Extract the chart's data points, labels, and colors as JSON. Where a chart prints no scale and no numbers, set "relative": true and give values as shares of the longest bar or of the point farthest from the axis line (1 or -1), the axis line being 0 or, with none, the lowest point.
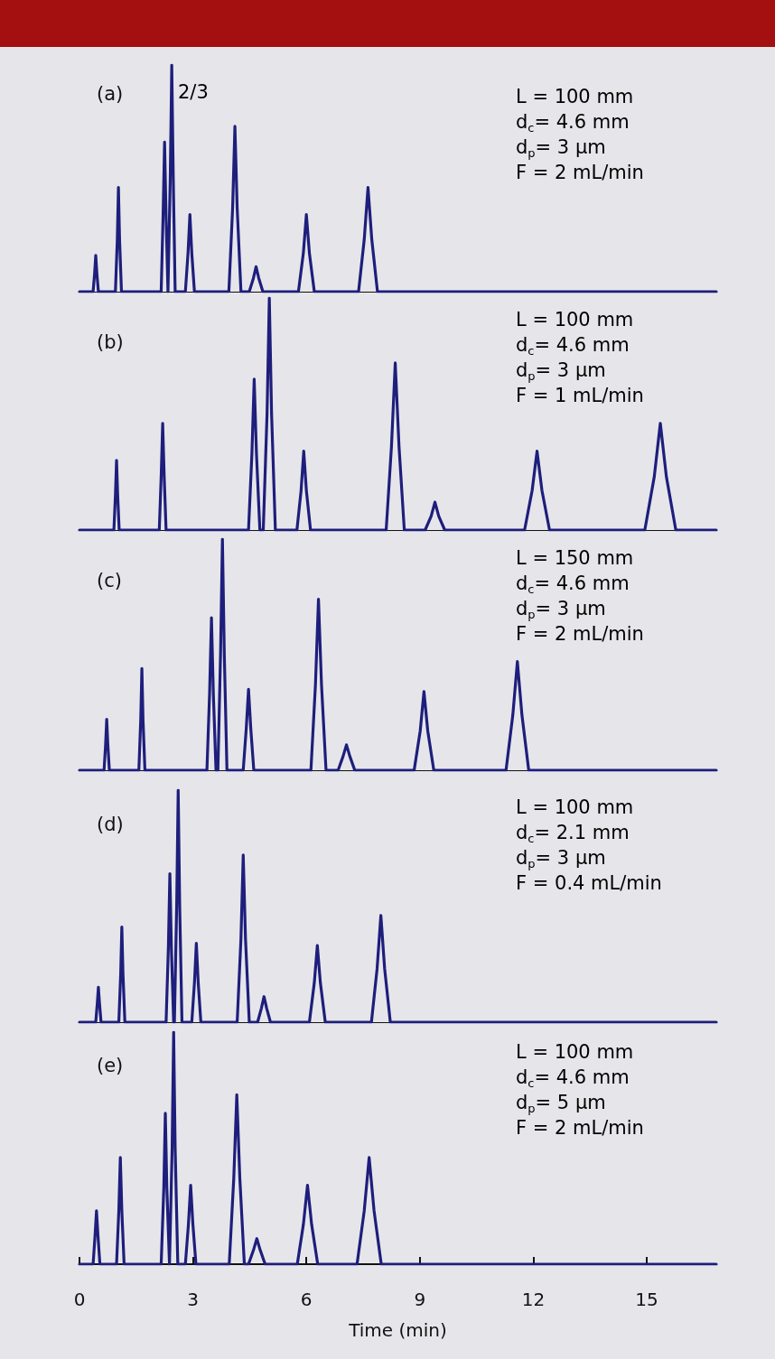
{
  "chart_data": [
    {
      "type": "line",
      "title": "(a)",
      "relative": true,
      "marker": "none",
      "tick_labels": false,
      "xlim": [
        0,
        16.84
      ],
      "annotations": [
        "L = 100 mm",
        "d$_{c}$= 4.6 mm",
        "d$_{p}$= 3 µm",
        "F = 2 mL/min",
        "2/3"
      ],
      "x": [
        0,
        0.36,
        0.4,
        0.43,
        0.46,
        0.5,
        0.95,
        1.0,
        1.03,
        1.06,
        1.11,
        2.16,
        2.21,
        2.25,
        2.29,
        2.34,
        2.35,
        2.4,
        2.44,
        2.48,
        2.53,
        2.8,
        2.87,
        2.92,
        2.97,
        3.04,
        3.95,
        4.05,
        4.11,
        4.17,
        4.27,
        4.49,
        4.6,
        4.67,
        4.74,
        4.85,
        5.79,
        5.92,
        6.0,
        6.08,
        6.21,
        7.38,
        7.53,
        7.63,
        7.73,
        7.88,
        16.84
      ],
      "series": [
        {
          "color": "#1e1e7c",
          "values": [
            0,
            0,
            0.08,
            0.16,
            0.08,
            0,
            0,
            0.23,
            0.46,
            0.23,
            0,
            0,
            0.33,
            0.66,
            0.33,
            0,
            0,
            0.5,
            1,
            0.5,
            0,
            0,
            0.17,
            0.34,
            0.17,
            0,
            0,
            0.37,
            0.73,
            0.37,
            0,
            0,
            0.06,
            0.11,
            0.06,
            0,
            0,
            0.17,
            0.34,
            0.17,
            0,
            0,
            0.23,
            0.46,
            0.23,
            0,
            0
          ]
        }
      ]
    },
    {
      "type": "line",
      "title": "(b)",
      "relative": true,
      "marker": "none",
      "tick_labels": false,
      "xlim": [
        0,
        16.84
      ],
      "annotations": [
        "L = 100 mm",
        "d$_{c}$= 4.6 mm",
        "d$_{p}$= 3 µm",
        "F = 1 mL/min"
      ],
      "x": [
        0,
        0.91,
        0.95,
        0.98,
        1.01,
        1.05,
        2.11,
        2.16,
        2.2,
        2.24,
        2.29,
        4.47,
        4.56,
        4.62,
        4.68,
        4.77,
        4.86,
        4.96,
        5.02,
        5.08,
        5.18,
        5.75,
        5.86,
        5.93,
        6.0,
        6.11,
        8.11,
        8.25,
        8.35,
        8.45,
        8.59,
        9.14,
        9.3,
        9.4,
        9.5,
        9.66,
        11.77,
        11.97,
        12.1,
        12.23,
        12.43,
        14.95,
        15.2,
        15.36,
        15.52,
        15.77,
        16.84
      ],
      "series": [
        {
          "color": "#1e1e7c",
          "values": [
            0,
            0,
            0.15,
            0.3,
            0.15,
            0,
            0,
            0.23,
            0.46,
            0.23,
            0,
            0,
            0.33,
            0.65,
            0.33,
            0,
            0,
            0.5,
            1,
            0.5,
            0,
            0,
            0.17,
            0.34,
            0.17,
            0,
            0,
            0.36,
            0.72,
            0.36,
            0,
            0,
            0.06,
            0.12,
            0.06,
            0,
            0,
            0.17,
            0.34,
            0.17,
            0,
            0,
            0.23,
            0.46,
            0.23,
            0,
            0
          ]
        }
      ]
    },
    {
      "type": "line",
      "title": "(c)",
      "relative": true,
      "marker": "none",
      "tick_labels": false,
      "xlim": [
        0,
        16.84
      ],
      "annotations": [
        "L = 150 mm",
        "d$_{c}$= 4.6 mm",
        "d$_{p}$= 3 µm",
        "F = 2 mL/min"
      ],
      "x": [
        0,
        0.65,
        0.69,
        0.72,
        0.75,
        0.79,
        1.57,
        1.62,
        1.65,
        1.68,
        1.73,
        3.37,
        3.44,
        3.49,
        3.54,
        3.61,
        3.66,
        3.73,
        3.78,
        3.83,
        3.9,
        4.33,
        4.41,
        4.47,
        4.53,
        4.61,
        6.12,
        6.24,
        6.32,
        6.4,
        6.52,
        6.84,
        6.97,
        7.06,
        7.15,
        7.28,
        8.85,
        9.01,
        9.11,
        9.21,
        9.37,
        11.28,
        11.46,
        11.58,
        11.7,
        11.88,
        16.84
      ],
      "series": [
        {
          "color": "#1e1e7c",
          "values": [
            0,
            0,
            0.11,
            0.22,
            0.11,
            0,
            0,
            0.22,
            0.44,
            0.22,
            0,
            0,
            0.33,
            0.66,
            0.33,
            0,
            0,
            0.5,
            1,
            0.5,
            0,
            0,
            0.18,
            0.35,
            0.18,
            0,
            0,
            0.37,
            0.74,
            0.37,
            0,
            0,
            0.06,
            0.11,
            0.06,
            0,
            0,
            0.17,
            0.34,
            0.17,
            0,
            0,
            0.24,
            0.47,
            0.24,
            0,
            0
          ]
        }
      ]
    },
    {
      "type": "line",
      "title": "(d)",
      "relative": true,
      "marker": "none",
      "tick_labels": false,
      "xlim": [
        0,
        16.84
      ],
      "annotations": [
        "L = 100 mm",
        "d$_{c}$= 2.1 mm",
        "d$_{p}$= 3 µm",
        "F = 0.4 mL/min"
      ],
      "x": [
        0,
        0.43,
        0.47,
        0.5,
        0.53,
        0.57,
        1.04,
        1.09,
        1.12,
        1.15,
        1.2,
        2.29,
        2.35,
        2.39,
        2.43,
        2.49,
        2.51,
        2.57,
        2.61,
        2.65,
        2.71,
        2.97,
        3.04,
        3.09,
        3.14,
        3.21,
        4.17,
        4.27,
        4.33,
        4.39,
        4.49,
        4.71,
        4.81,
        4.88,
        4.95,
        5.05,
        6.08,
        6.21,
        6.29,
        6.37,
        6.5,
        7.72,
        7.87,
        7.97,
        8.07,
        8.22,
        16.84
      ],
      "series": [
        {
          "color": "#1e1e7c",
          "values": [
            0,
            0,
            0.08,
            0.15,
            0.08,
            0,
            0,
            0.21,
            0.41,
            0.21,
            0,
            0,
            0.32,
            0.64,
            0.32,
            0,
            0,
            0.5,
            1,
            0.5,
            0,
            0,
            0.17,
            0.34,
            0.17,
            0,
            0,
            0.36,
            0.72,
            0.36,
            0,
            0,
            0.06,
            0.11,
            0.06,
            0,
            0,
            0.17,
            0.33,
            0.17,
            0,
            0,
            0.23,
            0.46,
            0.23,
            0,
            0
          ]
        }
      ]
    },
    {
      "type": "line",
      "title": "(e)",
      "relative": true,
      "marker": "none",
      "tick_labels": "x",
      "xlim": [
        0,
        16.84
      ],
      "xticks": [
        0,
        3,
        6,
        9,
        12,
        15
      ],
      "xlabel": "Time (min)",
      "annotations": [
        "L = 100 mm",
        "d$_{c}$= 4.6 mm",
        "d$_{p}$= 5 µm",
        "F = 2 mL/min"
      ],
      "x": [
        0,
        0.36,
        0.41,
        0.45,
        0.49,
        0.54,
        0.98,
        1.04,
        1.08,
        1.12,
        1.18,
        2.16,
        2.23,
        2.27,
        2.31,
        2.38,
        2.39,
        2.45,
        2.49,
        2.53,
        2.6,
        2.8,
        2.88,
        2.94,
        3.0,
        3.08,
        3.96,
        4.08,
        4.16,
        4.24,
        4.36,
        4.47,
        4.6,
        4.69,
        4.78,
        4.91,
        5.76,
        5.92,
        6.03,
        6.14,
        6.3,
        7.34,
        7.53,
        7.66,
        7.79,
        7.98,
        16.84
      ],
      "series": [
        {
          "color": "#1e1e7c",
          "values": [
            0,
            0,
            0.12,
            0.23,
            0.12,
            0,
            0,
            0.23,
            0.46,
            0.23,
            0,
            0,
            0.33,
            0.65,
            0.33,
            0,
            0,
            0.5,
            1,
            0.5,
            0,
            0,
            0.17,
            0.34,
            0.17,
            0,
            0,
            0.37,
            0.73,
            0.37,
            0,
            0,
            0.06,
            0.11,
            0.06,
            0,
            0,
            0.17,
            0.34,
            0.17,
            0,
            0,
            0.23,
            0.46,
            0.23,
            0,
            0
          ]
        }
      ]
    }
  ]
}
